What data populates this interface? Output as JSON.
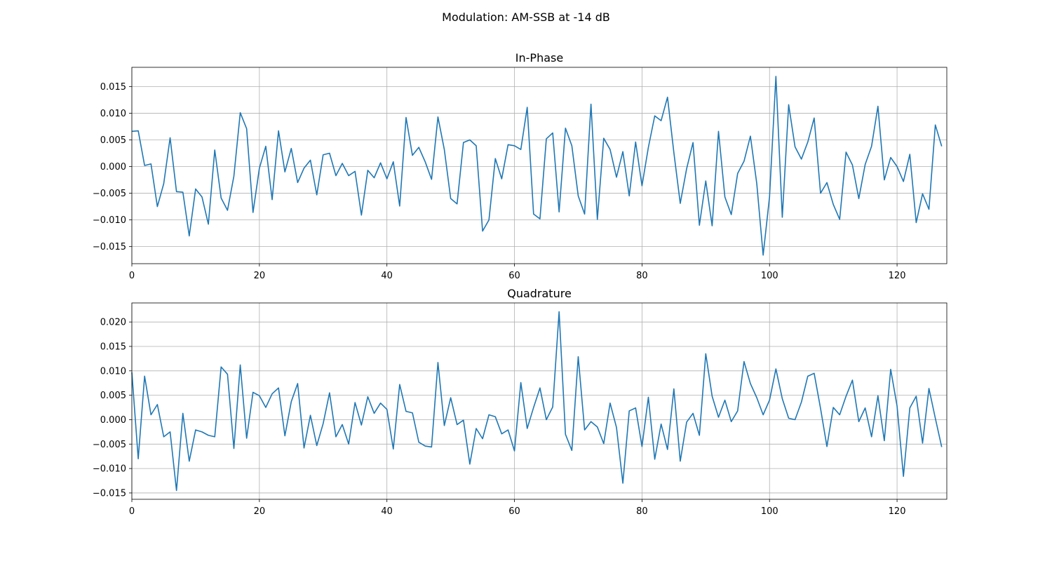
{
  "suptitle": "Modulation: AM-SSB at -14 dB",
  "chart_data": [
    {
      "type": "line",
      "title": "In-Phase",
      "xlabel": "",
      "ylabel": "",
      "xlim": [
        0,
        127.8
      ],
      "ylim": [
        -0.0182,
        0.0186
      ],
      "xticks": [
        0,
        20,
        40,
        60,
        80,
        100,
        120
      ],
      "yticks": [
        -0.015,
        -0.01,
        -0.005,
        0.0,
        0.005,
        0.01,
        0.015
      ],
      "grid": true,
      "color": "#1f77b4",
      "x_start": 0,
      "values": [
        0.0066,
        0.0067,
        0.0002,
        0.0005,
        -0.0075,
        -0.0032,
        0.0054,
        -0.0047,
        -0.0048,
        -0.013,
        -0.0042,
        -0.0057,
        -0.0108,
        0.0031,
        -0.0059,
        -0.0082,
        -0.0018,
        0.0101,
        0.0071,
        -0.0086,
        -0.0003,
        0.0038,
        -0.0062,
        0.0067,
        -0.001,
        0.0034,
        -0.003,
        -0.0003,
        0.0012,
        -0.0053,
        0.0022,
        0.0025,
        -0.0017,
        0.0006,
        -0.0017,
        -0.0009,
        -0.0091,
        -0.0007,
        -0.0021,
        0.0007,
        -0.0023,
        0.0009,
        -0.0074,
        0.0092,
        0.0021,
        0.0036,
        0.0009,
        -0.0024,
        0.0093,
        0.0032,
        -0.006,
        -0.007,
        0.0045,
        0.005,
        0.0039,
        -0.0121,
        -0.01,
        0.0015,
        -0.0023,
        0.0041,
        0.0039,
        0.0032,
        0.0111,
        -0.0089,
        -0.0098,
        0.0052,
        0.0063,
        -0.0085,
        0.0072,
        0.0039,
        -0.0055,
        -0.0089,
        0.0117,
        -0.0099,
        0.0053,
        0.0032,
        -0.002,
        0.0028,
        -0.0055,
        0.0046,
        -0.0036,
        0.0036,
        0.0095,
        0.0086,
        0.013,
        0.0026,
        -0.0069,
        -0.0004,
        0.0045,
        -0.011,
        -0.0027,
        -0.0111,
        0.0066,
        -0.0057,
        -0.009,
        -0.0013,
        0.001,
        0.0057,
        -0.0032,
        -0.0166,
        -0.0057,
        0.0169,
        -0.0095,
        0.0116,
        0.0037,
        0.0014,
        0.0046,
        0.0091,
        -0.005,
        -0.003,
        -0.0071,
        -0.0099,
        0.0027,
        0.0003,
        -0.006,
        0.0004,
        0.0038,
        0.0113,
        -0.0025,
        0.0017,
        0.0,
        -0.0028,
        0.0023,
        -0.0105,
        -0.0051,
        -0.008,
        0.0078,
        0.0038
      ]
    },
    {
      "type": "line",
      "title": "Quadrature",
      "xlabel": "",
      "ylabel": "",
      "xlim": [
        0,
        127.8
      ],
      "ylim": [
        -0.0163,
        0.0239
      ],
      "xticks": [
        0,
        20,
        40,
        60,
        80,
        100,
        120
      ],
      "yticks": [
        -0.015,
        -0.01,
        -0.005,
        0.0,
        0.005,
        0.01,
        0.015,
        0.02
      ],
      "grid": true,
      "color": "#1f77b4",
      "x_start": 0,
      "values": [
        0.0097,
        -0.008,
        0.0089,
        0.001,
        0.0031,
        -0.0035,
        -0.0025,
        -0.0145,
        0.0013,
        -0.0085,
        -0.0021,
        -0.0025,
        -0.0032,
        -0.0035,
        0.0108,
        0.0093,
        -0.0059,
        0.0112,
        -0.0038,
        0.0056,
        0.0049,
        0.0025,
        0.0053,
        0.0065,
        -0.0033,
        0.0037,
        0.0074,
        -0.0058,
        0.0009,
        -0.0053,
        -0.0008,
        0.0055,
        -0.0035,
        -0.001,
        -0.005,
        0.0035,
        -0.0011,
        0.0047,
        0.0013,
        0.0034,
        0.0021,
        -0.006,
        0.0072,
        0.0017,
        0.0014,
        -0.0046,
        -0.0054,
        -0.0056,
        0.0117,
        -0.0012,
        0.0045,
        -0.001,
        -0.0001,
        -0.0091,
        -0.0018,
        -0.0039,
        0.001,
        0.0006,
        -0.0029,
        -0.0021,
        -0.0064,
        0.0076,
        -0.0018,
        0.0025,
        0.0065,
        0.0,
        0.0026,
        0.0221,
        -0.003,
        -0.0063,
        0.0129,
        -0.0021,
        -0.0004,
        -0.0015,
        -0.0049,
        0.0034,
        -0.0016,
        -0.013,
        0.0018,
        0.0024,
        -0.0055,
        0.0046,
        -0.0081,
        -0.0009,
        -0.0061,
        0.0063,
        -0.0085,
        -0.0005,
        0.0013,
        -0.0032,
        0.0135,
        0.0048,
        0.0005,
        0.004,
        -0.0004,
        0.0018,
        0.0119,
        0.0074,
        0.0045,
        0.001,
        0.004,
        0.0104,
        0.0043,
        0.0003,
        0.0,
        0.0036,
        0.0089,
        0.0095,
        0.0023,
        -0.0055,
        0.0025,
        0.001,
        0.0048,
        0.0081,
        -0.0004,
        0.0024,
        -0.0035,
        0.0049,
        -0.0043,
        0.0103,
        0.0028,
        -0.0116,
        0.0024,
        0.0048,
        -0.0048,
        0.0064,
        0.0003,
        -0.0056
      ]
    }
  ]
}
